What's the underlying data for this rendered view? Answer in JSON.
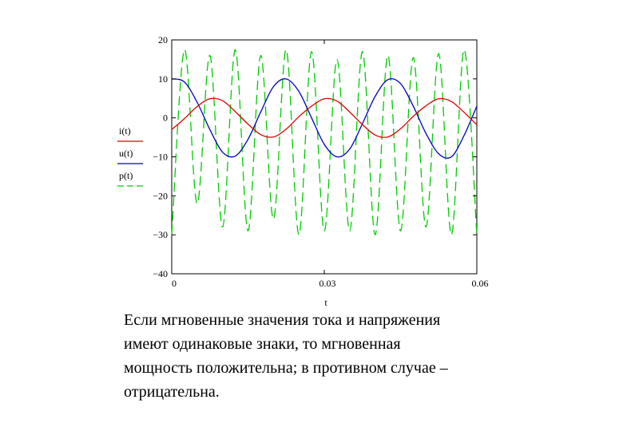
{
  "chart_data": {
    "type": "line",
    "xlabel": "t",
    "xlim": [
      0,
      0.06
    ],
    "ylim": [
      -40,
      20
    ],
    "x_ticks": [
      0,
      0.03,
      0.06
    ],
    "x_tick_labels": [
      "0",
      "0.03",
      "0.06"
    ],
    "y_ticks": [
      20,
      10,
      0,
      -10,
      -20,
      -30,
      -40
    ],
    "y_tick_labels": [
      "20",
      "10",
      "0",
      "−10",
      "−20",
      "−30",
      "−40"
    ],
    "grid": false,
    "legend_placement": "left-outside",
    "series": [
      {
        "name": "i(t)",
        "color": "#e00000",
        "dash": "solid",
        "x": [
          0,
          0.0025,
          0.005,
          0.0075,
          0.01,
          0.0125,
          0.015,
          0.0175,
          0.02,
          0.0225,
          0.025,
          0.0275,
          0.03,
          0.0325,
          0.035,
          0.0375,
          0.04,
          0.0425,
          0.045,
          0.0475,
          0.05,
          0.0525,
          0.055,
          0.0575,
          0.06
        ],
        "values": [
          -3.0,
          -0.2,
          2.9,
          4.9,
          4.4,
          1.6,
          -1.6,
          -4.3,
          -4.9,
          -2.9,
          0.3,
          3.0,
          4.9,
          4.3,
          1.5,
          -1.7,
          -4.4,
          -4.9,
          -2.8,
          0.4,
          3.1,
          4.9,
          4.2,
          1.4,
          -1.8
        ]
      },
      {
        "name": "u(t)",
        "color": "#0000c0",
        "dash": "solid",
        "x": [
          0,
          0.0025,
          0.005,
          0.0075,
          0.01,
          0.0125,
          0.015,
          0.0175,
          0.02,
          0.0225,
          0.025,
          0.0275,
          0.03,
          0.0325,
          0.035,
          0.0375,
          0.04,
          0.0425,
          0.045,
          0.0475,
          0.05,
          0.0525,
          0.055,
          0.0575,
          0.06
        ],
        "values": [
          10.0,
          9.2,
          4.0,
          -3.0,
          -8.8,
          -9.8,
          -5.5,
          1.5,
          8.0,
          10.0,
          6.8,
          0.0,
          -6.8,
          -10.0,
          -8.0,
          -1.5,
          5.5,
          9.8,
          8.8,
          3.0,
          -4.0,
          -9.2,
          -10.0,
          -4.5,
          3.0
        ]
      },
      {
        "name": "p(t)",
        "color": "#00cc00",
        "dash": "dashed",
        "x": [
          0,
          0.0025,
          0.005,
          0.0075,
          0.01,
          0.0125,
          0.015,
          0.0175,
          0.02,
          0.0225,
          0.025,
          0.0275,
          0.03,
          0.0325,
          0.035,
          0.0375,
          0.04,
          0.0425,
          0.045,
          0.0475,
          0.05,
          0.0525,
          0.055,
          0.0575,
          0.06
        ],
        "values": [
          -30.0,
          17.5,
          -22.0,
          16.0,
          -28.0,
          17.5,
          -29.0,
          16.0,
          -26.0,
          17.5,
          -30.0,
          17.0,
          -29.0,
          15.0,
          -29.0,
          17.0,
          -30.0,
          16.0,
          -29.0,
          15.5,
          -28.0,
          16.5,
          -30.0,
          17.5,
          -30.0
        ]
      }
    ]
  },
  "caption": {
    "lines": [
      "Если мгновенные значения тока и напряжения",
      "имеют одинаковые знаки, то мгновенная",
      "мощность положительна; в противном случае –",
      "отрицательна."
    ]
  }
}
